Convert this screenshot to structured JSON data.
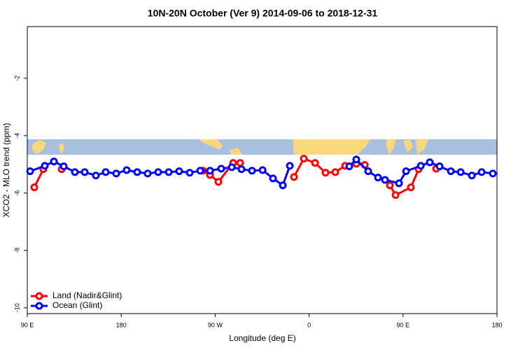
{
  "chart_data": {
    "type": "line",
    "title": "10N-20N October (Ver 9)   2014-09-06 to 2018-12-31",
    "xlabel": "Longitude (deg E)",
    "ylabel": "XCO2 - MLO trend (ppm)",
    "xlim": [
      90,
      540
    ],
    "ylim": [
      -10.2,
      -0.2
    ],
    "xticks": [
      {
        "value": 90,
        "label": "90 E"
      },
      {
        "value": 180,
        "label": "180"
      },
      {
        "value": 270,
        "label": "90 W"
      },
      {
        "value": 360,
        "label": "0"
      },
      {
        "value": 450,
        "label": "90 E"
      },
      {
        "value": 540,
        "label": "180"
      }
    ],
    "yticks": [
      -10,
      -8,
      -6,
      -4,
      -2
    ],
    "legend": "bottom-left",
    "series": [
      {
        "name": "Land (Nadir&Glint)",
        "color": "#ff0000",
        "x": [
          96.7,
          105.4,
          null,
          122.9,
          null,
          258.3,
          265.1,
          273.1,
          287.2,
          293.9,
          null,
          345.5,
          354.9,
          365.7,
          375.7,
          385.1,
          394.5,
          405.2,
          413.3,
          null,
          437.4,
          442.8,
          457.5,
          464.9,
          null,
          481.7
        ],
        "values": [
          -5.8,
          -5.17,
          null,
          -5.17,
          null,
          -5.22,
          -5.37,
          -5.61,
          -4.95,
          -4.95,
          null,
          -5.44,
          -4.8,
          -4.95,
          -5.29,
          -5.27,
          -5.05,
          -4.98,
          -5.02,
          null,
          -5.73,
          -6.07,
          -5.8,
          -5.17,
          null,
          -5.15
        ]
      },
      {
        "name": "Ocean (Glint)",
        "color": "#0000ff",
        "x": [
          92.7,
          106.8,
          115.5,
          124.9,
          135.6,
          145.0,
          155.7,
          165.1,
          175.2,
          185.2,
          195.3,
          205.3,
          215.4,
          225.5,
          235.5,
          245.6,
          255.7,
          265.1,
          275.8,
          285.9,
          295.2,
          305.3,
          315.4,
          325.4,
          334.8,
          341.5,
          null,
          398.5,
          405.2,
          416.6,
          426.0,
          432.7,
          446.1,
          452.9,
          467.0,
          475.6,
          485.0,
          495.8,
          505.2,
          515.9,
          525.3,
          536.0
        ],
        "values": [
          -5.24,
          -5.05,
          -4.9,
          -5.07,
          -5.27,
          -5.27,
          -5.39,
          -5.27,
          -5.32,
          -5.2,
          -5.27,
          -5.32,
          -5.27,
          -5.27,
          -5.24,
          -5.29,
          -5.22,
          -5.22,
          -5.15,
          -5.1,
          -5.17,
          -5.22,
          -5.2,
          -5.49,
          -5.73,
          -5.05,
          null,
          -5.07,
          -4.83,
          -5.24,
          -5.46,
          -5.54,
          -5.66,
          -5.24,
          -5.05,
          -4.93,
          -5.07,
          -5.24,
          -5.27,
          -5.39,
          -5.27,
          -5.32
        ]
      }
    ]
  }
}
